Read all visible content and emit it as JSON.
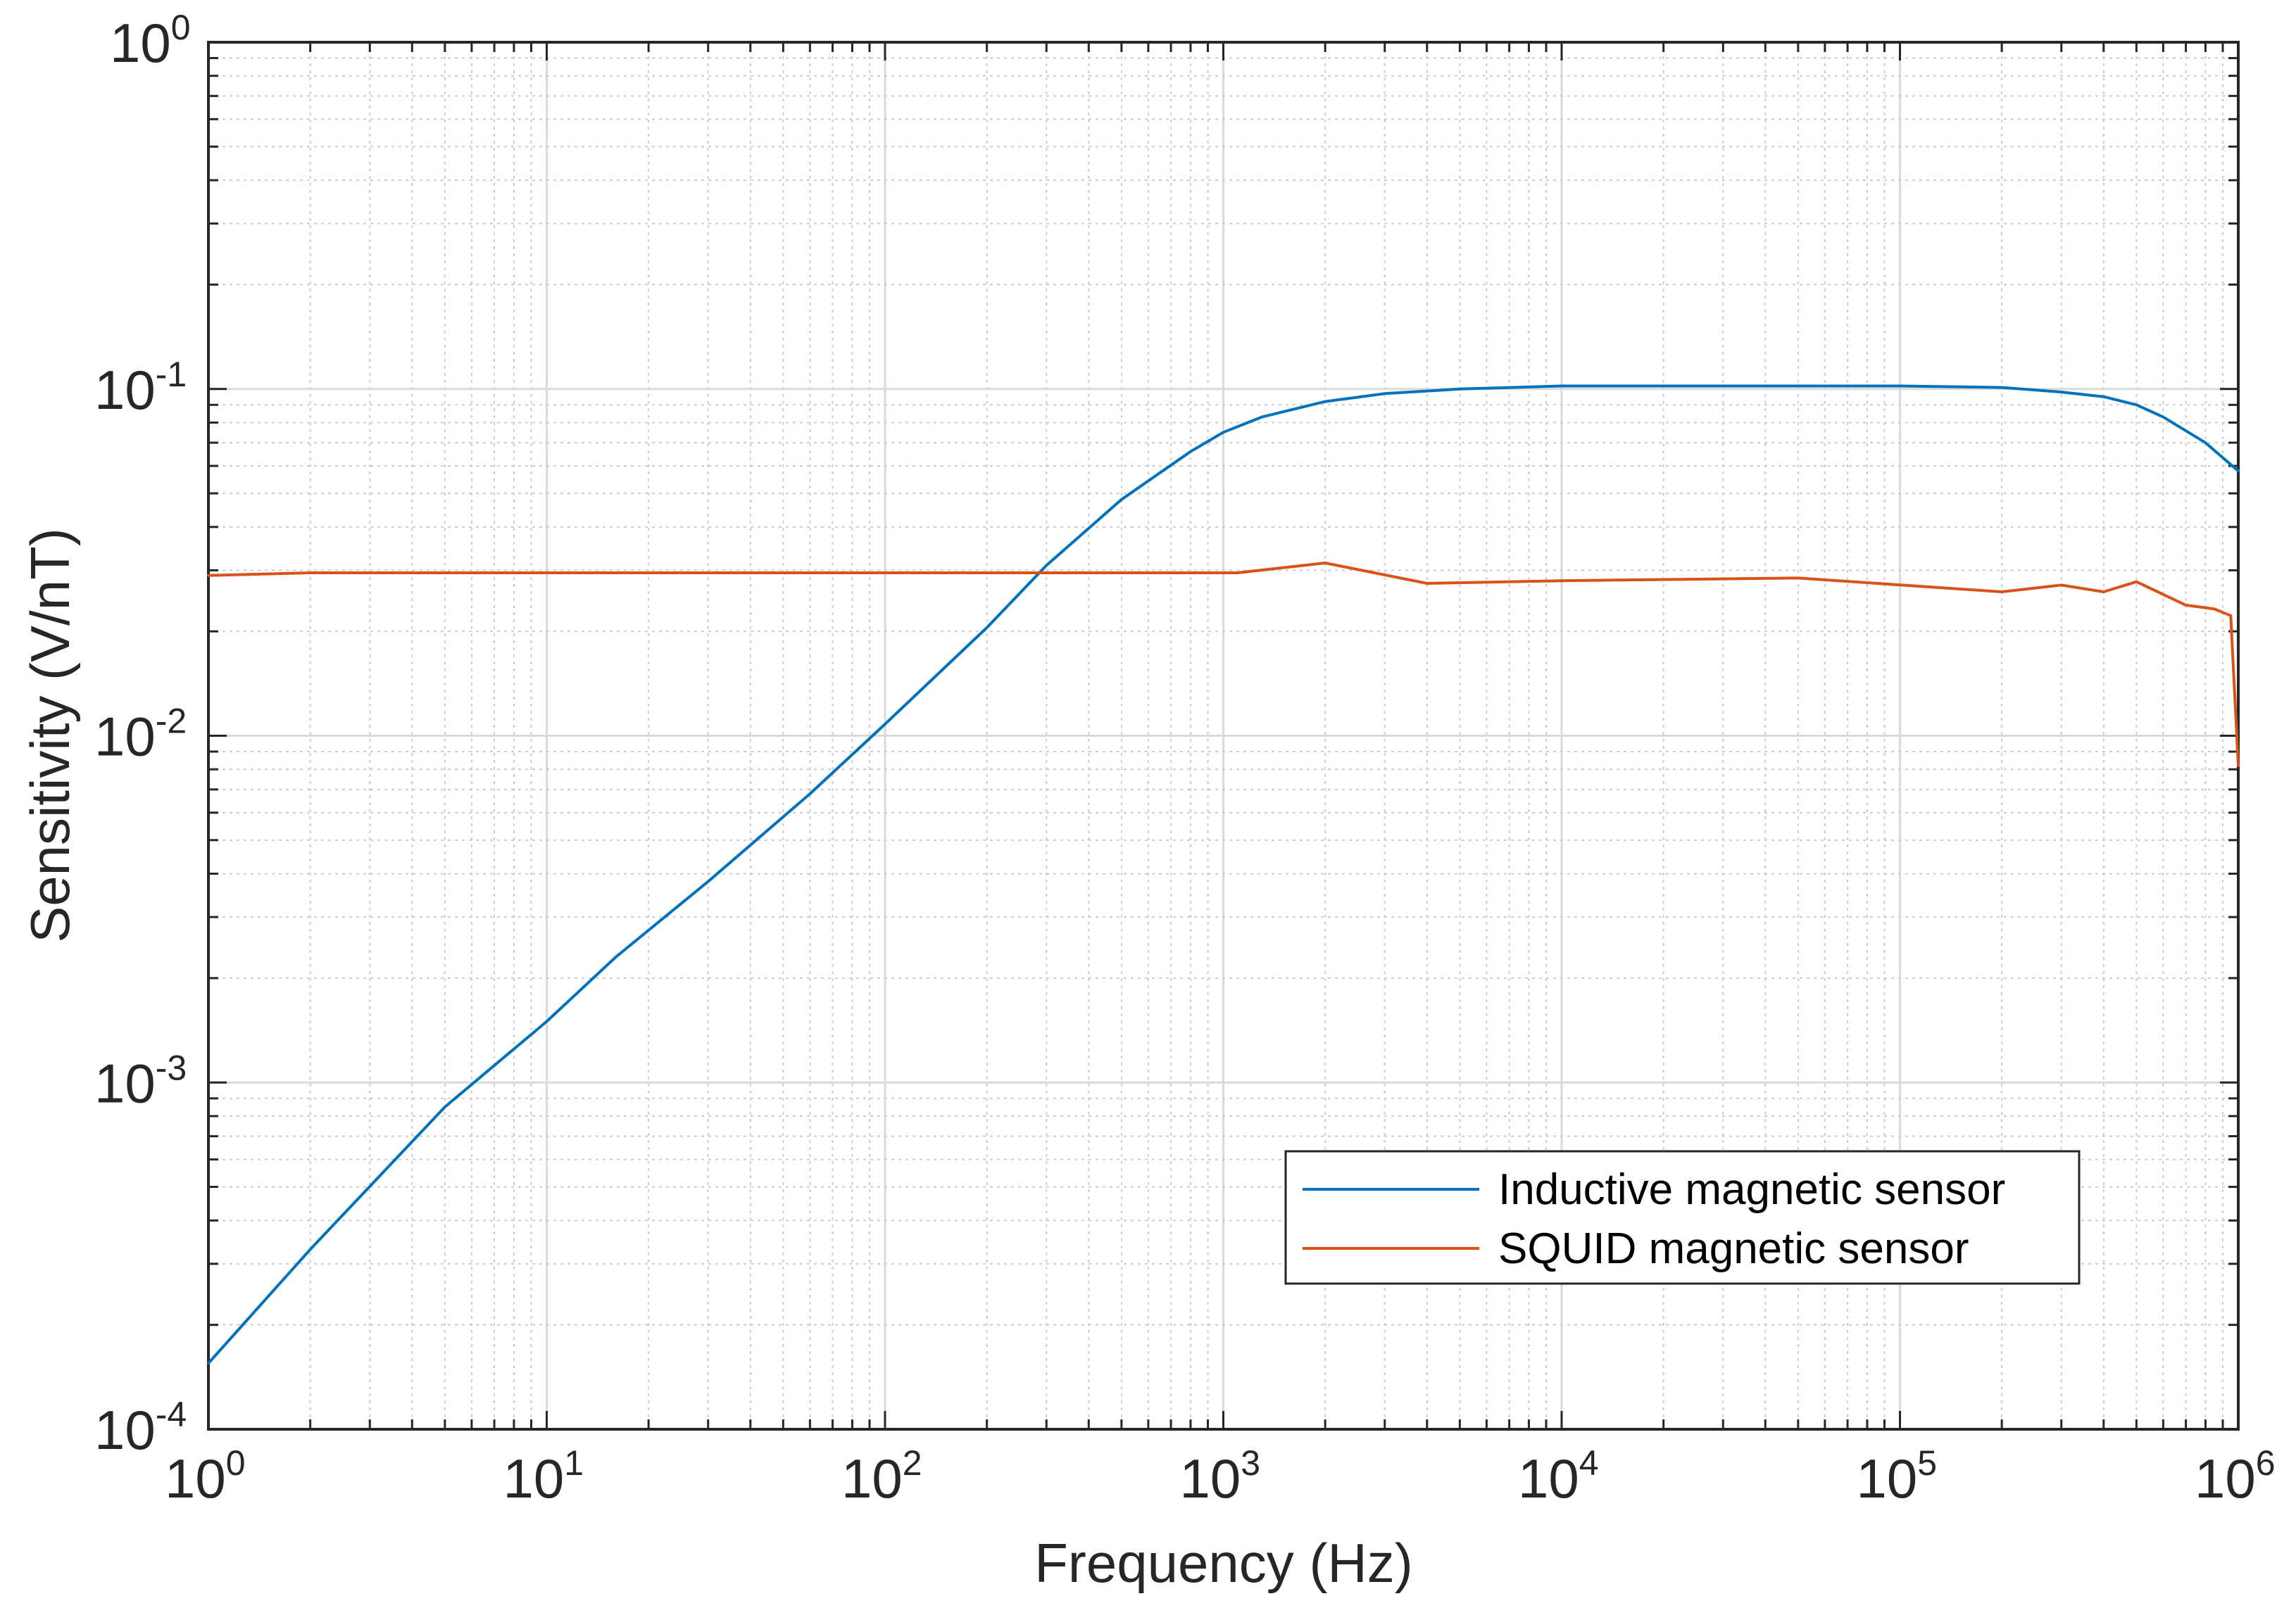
{
  "chart_data": {
    "type": "line",
    "xscale": "log",
    "yscale": "log",
    "xlabel": "Frequency (Hz)",
    "ylabel": "Sensitivity (V/nT)",
    "xlim": [
      1,
      1000000
    ],
    "ylim": [
      0.0001,
      1
    ],
    "grid": true,
    "minor_grid": true,
    "legend_position": "bottom-right",
    "x_ticks": [
      {
        "base": "10",
        "exp": "0"
      },
      {
        "base": "10",
        "exp": "1"
      },
      {
        "base": "10",
        "exp": "2"
      },
      {
        "base": "10",
        "exp": "3"
      },
      {
        "base": "10",
        "exp": "4"
      },
      {
        "base": "10",
        "exp": "5"
      },
      {
        "base": "10",
        "exp": "6"
      }
    ],
    "y_ticks": [
      {
        "base": "10",
        "exp": "0"
      },
      {
        "base": "10",
        "exp": "-1"
      },
      {
        "base": "10",
        "exp": "-2"
      },
      {
        "base": "10",
        "exp": "-3"
      },
      {
        "base": "10",
        "exp": "-4"
      }
    ],
    "series": [
      {
        "name": "Inductive magnetic sensor",
        "color": "#0072BD",
        "x": [
          1,
          2,
          5,
          10,
          16,
          30,
          60,
          100,
          200,
          300,
          500,
          800,
          1000,
          1300,
          2000,
          3000,
          5000,
          10000,
          20000,
          50000,
          100000,
          200000,
          300000,
          400000,
          500000,
          600000,
          800000,
          1000000
        ],
        "y": [
          0.000155,
          0.00033,
          0.00085,
          0.0015,
          0.0023,
          0.0038,
          0.0068,
          0.0108,
          0.0205,
          0.031,
          0.048,
          0.066,
          0.075,
          0.083,
          0.092,
          0.097,
          0.1,
          0.102,
          0.102,
          0.102,
          0.102,
          0.101,
          0.098,
          0.095,
          0.09,
          0.083,
          0.07,
          0.058
        ]
      },
      {
        "name": "SQUID magnetic sensor",
        "color": "#D95319",
        "x": [
          1,
          2,
          5,
          10,
          100,
          1000,
          1100,
          2000,
          4000,
          10000,
          50000,
          200000,
          300000,
          400000,
          500000,
          700000,
          850000,
          950000,
          1000000
        ],
        "y": [
          0.029,
          0.0295,
          0.0295,
          0.0295,
          0.0295,
          0.0295,
          0.0295,
          0.0315,
          0.0275,
          0.028,
          0.0285,
          0.026,
          0.0272,
          0.026,
          0.0278,
          0.0238,
          0.0232,
          0.0222,
          0.0082
        ]
      }
    ]
  }
}
